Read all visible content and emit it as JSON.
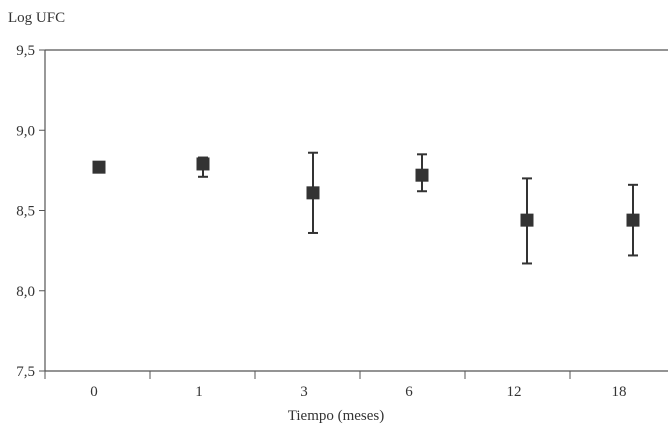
{
  "chart_data": {
    "type": "scatter",
    "ylabel": "Log UFC",
    "xlabel": "Tiempo (meses)",
    "categories": [
      "0",
      "1",
      "3",
      "6",
      "12",
      "18"
    ],
    "y_tick_labels": [
      "7,5",
      "8,0",
      "8,5",
      "9,0",
      "9,5"
    ],
    "y_ticks": [
      7.5,
      8.0,
      8.5,
      9.0,
      9.5
    ],
    "ylim": [
      7.5,
      9.5
    ],
    "grid": false,
    "legend": "none",
    "series": [
      {
        "values": [
          8.77,
          8.79,
          8.61,
          8.72,
          8.44,
          8.44
        ],
        "error_low": [
          null,
          8.71,
          8.36,
          8.62,
          8.17,
          8.22
        ],
        "error_high": [
          null,
          8.83,
          8.86,
          8.85,
          8.7,
          8.66
        ]
      }
    ],
    "colors": {
      "marker": "#333333",
      "axis": "#555555",
      "error_bar": "#333333"
    },
    "marker_shape": "square"
  }
}
